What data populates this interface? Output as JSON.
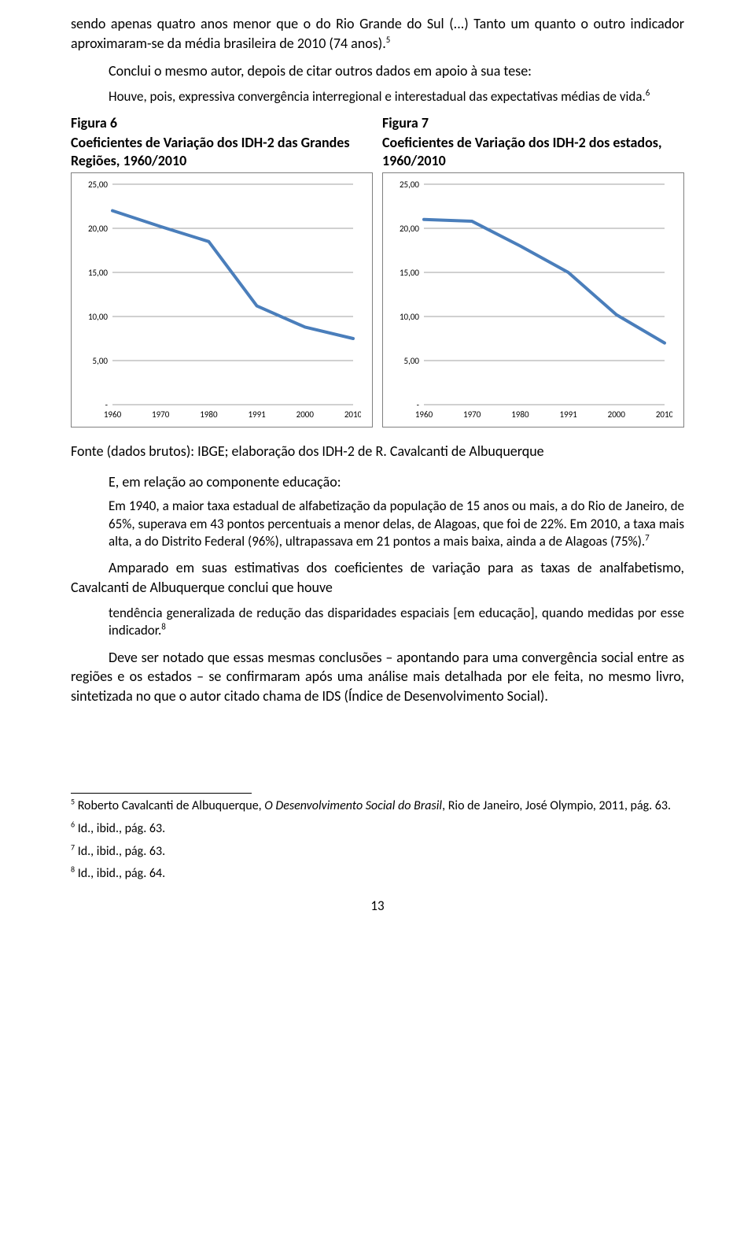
{
  "p1": "sendo apenas quatro anos menor que o do Rio Grande do Sul (...) Tanto um quanto o outro indicador aproximaram-se da média brasileira de 2010 (74 anos).",
  "p1_sup": "5",
  "p2": "Conclui o mesmo autor, depois de citar outros dados em apoio à sua tese:",
  "q1": "Houve, pois, expressiva convergência interregional e interestadual das expectativas médias de vida.",
  "q1_sup": "6",
  "fig6_label": "Figura 6",
  "fig6_title": "Coeficientes de Variação dos IDH-2 das Grandes Regiões, 1960/2010",
  "fig7_label": "Figura 7",
  "fig7_title": "Coeficientes de Variação dos IDH-2 dos estados, 1960/2010",
  "chart": {
    "type": "line",
    "y_ticks": [
      "25,00",
      "20,00",
      "15,00",
      "10,00",
      "5,00",
      "-"
    ],
    "y_ticks_num": [
      25,
      20,
      15,
      10,
      5,
      0
    ],
    "x_labels": [
      "1960",
      "1970",
      "1980",
      "1991",
      "2000",
      "2010"
    ],
    "series6": [
      22.0,
      20.2,
      18.5,
      11.2,
      8.8,
      7.5
    ],
    "series7": [
      21.0,
      20.8,
      18.0,
      15.0,
      10.2,
      7.0
    ],
    "line_color": "#4a7ebb",
    "line_width": 4,
    "grid_color": "#808080",
    "axis_fontsize": 11,
    "background": "#ffffff"
  },
  "source": "Fonte (dados brutos): IBGE; elaboração dos IDH-2 de R. Cavalcanti de Albuquerque",
  "section": "E, em relação ao componente educação:",
  "q2_a": "Em 1940, a maior taxa estadual de alfabetização da população de 15 anos ou mais, a do Rio de Janeiro, de 65%, superava em 43 pontos percentuais a menor delas, de Alagoas, que foi de 22%. Em 2010, a taxa mais alta, a do Distrito Federal (96%), ultrapassava em 21 pontos a mais baixa, ainda a de Alagoas (75%).",
  "q2_sup": "7",
  "p3": "Amparado em suas estimativas dos coeficientes de variação para as taxas de analfabetismo, Cavalcanti de Albuquerque conclui que houve",
  "q3": "tendência generalizada de redução das disparidades espaciais [em educação], quando medidas por esse indicador.",
  "q3_sup": "8",
  "p4": "Deve ser notado que essas mesmas conclusões – apontando para uma convergência social entre as regiões e os estados – se confirmaram após uma análise mais detalhada por ele feita, no mesmo livro, sintetizada no que o autor citado chama de IDS (Índice de Desenvolvimento Social).",
  "fn5_sup": "5",
  "fn5_a": " Roberto Cavalcanti de Albuquerque, ",
  "fn5_i": "O Desenvolvimento Social do Brasil",
  "fn5_b": ", Rio de Janeiro, José Olympio, 2011, pág. 63.",
  "fn6_sup": "6",
  "fn6": " Id., ibid., pág. 63.",
  "fn7_sup": "7",
  "fn7": " Id., ibid., pág. 63.",
  "fn8_sup": "8",
  "fn8": " Id., ibid., pág. 64.",
  "pagenum": "13"
}
